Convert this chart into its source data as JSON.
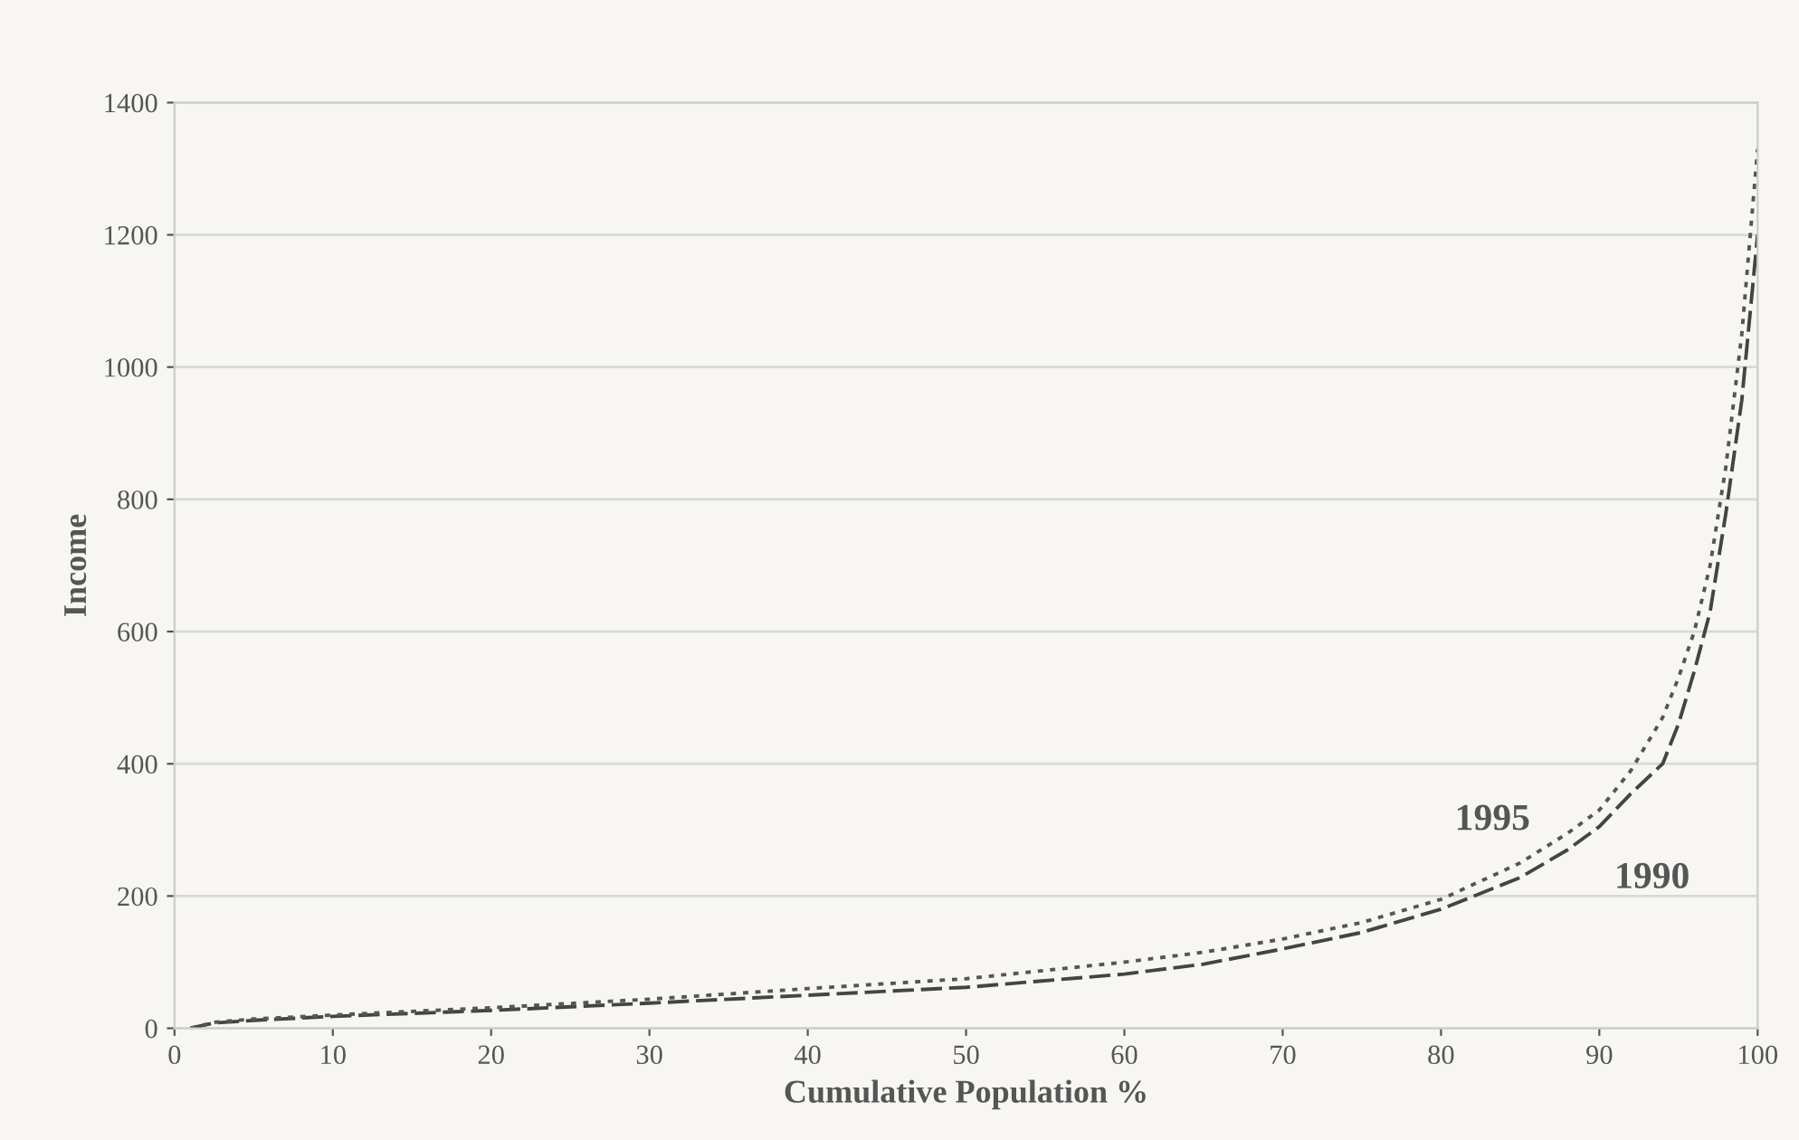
{
  "chart_data": {
    "type": "line",
    "xlabel": "Cumulative Population %",
    "ylabel": "Income",
    "xlim": [
      0,
      100
    ],
    "ylim": [
      0,
      1400
    ],
    "xticks": [
      0,
      10,
      20,
      30,
      40,
      50,
      60,
      70,
      80,
      90,
      100
    ],
    "yticks": [
      0,
      200,
      400,
      600,
      800,
      1000,
      1200,
      1400
    ],
    "grid": "y",
    "legend": false,
    "marker": "none",
    "series": [
      {
        "name": "1990",
        "color": "#444444",
        "line_style": "dashed",
        "x": [
          1,
          2.5,
          5,
          10,
          20,
          30,
          40,
          50,
          60,
          65,
          70,
          75,
          80,
          85,
          88,
          90,
          92,
          94,
          95,
          96,
          97,
          98,
          99,
          100
        ],
        "values": [
          0,
          8,
          12,
          18,
          27,
          38,
          50,
          62,
          82,
          97,
          120,
          145,
          180,
          228,
          270,
          305,
          355,
          400,
          460,
          540,
          630,
          780,
          950,
          1200
        ]
      },
      {
        "name": "1995",
        "color": "#555555",
        "line_style": "dotted",
        "x": [
          1,
          2.5,
          5,
          10,
          20,
          30,
          40,
          50,
          60,
          65,
          70,
          75,
          80,
          85,
          88,
          90,
          92,
          94,
          95,
          96,
          97,
          98,
          99,
          100
        ],
        "values": [
          0,
          9,
          14,
          20,
          31,
          44,
          60,
          75,
          100,
          115,
          135,
          160,
          195,
          250,
          295,
          330,
          390,
          470,
          530,
          600,
          700,
          850,
          1050,
          1330
        ]
      }
    ]
  }
}
